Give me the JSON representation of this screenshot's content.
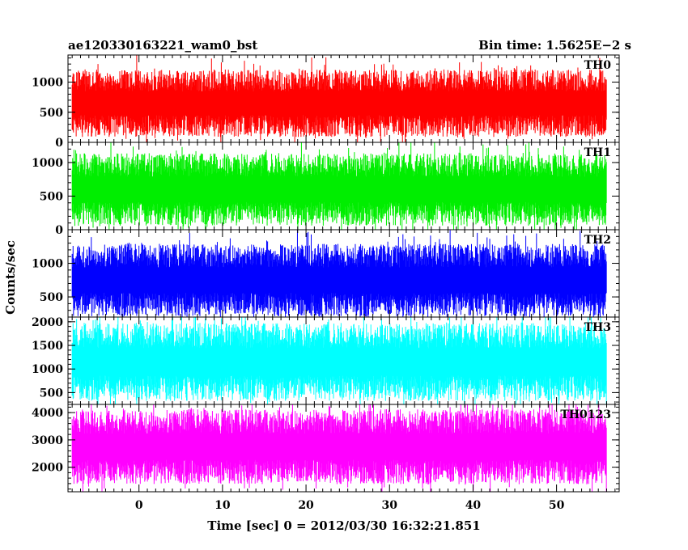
{
  "chart_data": {
    "type": "line",
    "title": "ae120330163221_wam0_bst",
    "subtitle": "Bin time: 1.5625E−2 s",
    "xlabel": "Time [sec] 0 = 2012/03/30 16:32:21.851",
    "ylabel": "Counts/sec",
    "xlim": [
      -8.5,
      57.5
    ],
    "data_range": [
      -8,
      56
    ],
    "x_ticks": [
      0,
      10,
      20,
      30,
      40,
      50
    ],
    "x_tick_labels": [
      "0",
      "10",
      "20",
      "30",
      "40",
      "50"
    ],
    "panels": [
      {
        "name": "TH0",
        "color": "#ff0000",
        "ylim": [
          0,
          1450
        ],
        "y_ticks": [
          0,
          500,
          1000
        ],
        "y_tick_labels": [
          "0",
          "500",
          "1000"
        ],
        "typical_band": [
          130,
          1250
        ],
        "mean": 650
      },
      {
        "name": "TH1",
        "color": "#00ee00",
        "ylim": [
          0,
          1300
        ],
        "y_ticks": [
          0,
          500,
          1000
        ],
        "y_tick_labels": [
          "0",
          "500",
          "1000"
        ],
        "typical_band": [
          70,
          1150
        ],
        "mean": 600
      },
      {
        "name": "TH2",
        "color": "#0000ff",
        "ylim": [
          200,
          1500
        ],
        "y_ticks": [
          500,
          1000
        ],
        "y_tick_labels": [
          "500",
          "1000"
        ],
        "typical_band": [
          270,
          1350
        ],
        "mean": 750
      },
      {
        "name": "TH3",
        "color": "#00ffff",
        "ylim": [
          250,
          2100
        ],
        "y_ticks": [
          500,
          1000,
          1500,
          2000
        ],
        "y_tick_labels": [
          "500",
          "1000",
          "1500",
          "2000"
        ],
        "typical_band": [
          350,
          2000
        ],
        "mean": 1150
      },
      {
        "name": "TH0123",
        "color": "#ff00ff",
        "ylim": [
          1100,
          4300
        ],
        "y_ticks": [
          2000,
          3000,
          4000
        ],
        "y_tick_labels": [
          "2000",
          "3000",
          "4000"
        ],
        "typical_band": [
          1350,
          4100
        ],
        "mean": 2750
      }
    ]
  }
}
